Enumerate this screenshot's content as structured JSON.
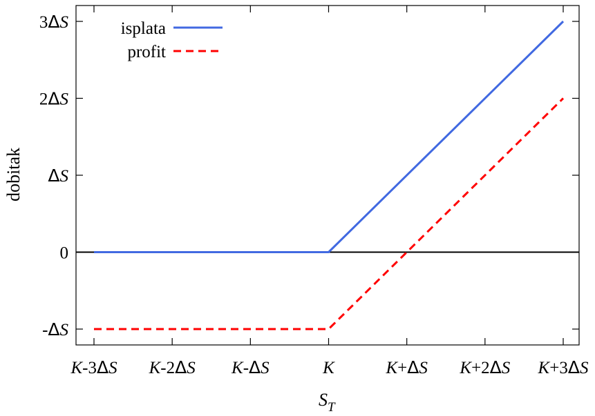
{
  "chart_data": {
    "type": "line",
    "xlabel": "S_T",
    "ylabel": "dobitak",
    "xlim": [
      -3,
      3
    ],
    "ylim": [
      -1,
      3
    ],
    "grid": false,
    "legend_position": "top-left",
    "x_ticks": [
      {
        "value": -3,
        "label": "K-3ΔS"
      },
      {
        "value": -2,
        "label": "K-2ΔS"
      },
      {
        "value": -1,
        "label": "K-ΔS"
      },
      {
        "value": 0,
        "label": "K"
      },
      {
        "value": 1,
        "label": "K+ΔS"
      },
      {
        "value": 2,
        "label": "K+2ΔS"
      },
      {
        "value": 3,
        "label": "K+3ΔS"
      }
    ],
    "y_ticks": [
      {
        "value": -1,
        "label": "-ΔS"
      },
      {
        "value": 0,
        "label": "0"
      },
      {
        "value": 1,
        "label": "ΔS"
      },
      {
        "value": 2,
        "label": "2ΔS"
      },
      {
        "value": 3,
        "label": "3ΔS"
      }
    ],
    "zero_line": true,
    "series": [
      {
        "name": "isplata",
        "color": "#4169E1",
        "style": "solid",
        "x": [
          -3,
          0,
          3
        ],
        "y": [
          0,
          0,
          3
        ]
      },
      {
        "name": "profit",
        "color": "#FF0000",
        "style": "dashed",
        "x": [
          -3,
          0,
          3
        ],
        "y": [
          -1,
          -1,
          2
        ]
      }
    ]
  }
}
